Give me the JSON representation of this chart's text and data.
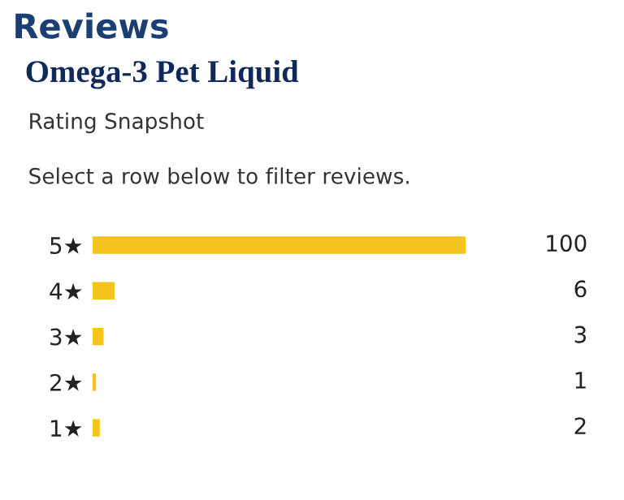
{
  "chart_data": {
    "type": "bar",
    "orientation": "horizontal",
    "title": "Reviews",
    "subtitle": "Omega-3 Pet Liquid",
    "annotations": [
      "Rating Snapshot",
      "Select a row below to filter reviews."
    ],
    "categories": [
      "5★",
      "4★",
      "3★",
      "2★",
      "1★"
    ],
    "values": [
      100,
      6,
      3,
      1,
      2
    ],
    "color": "#f2c41c",
    "data_labels": true,
    "grid": false,
    "legend": false
  }
}
